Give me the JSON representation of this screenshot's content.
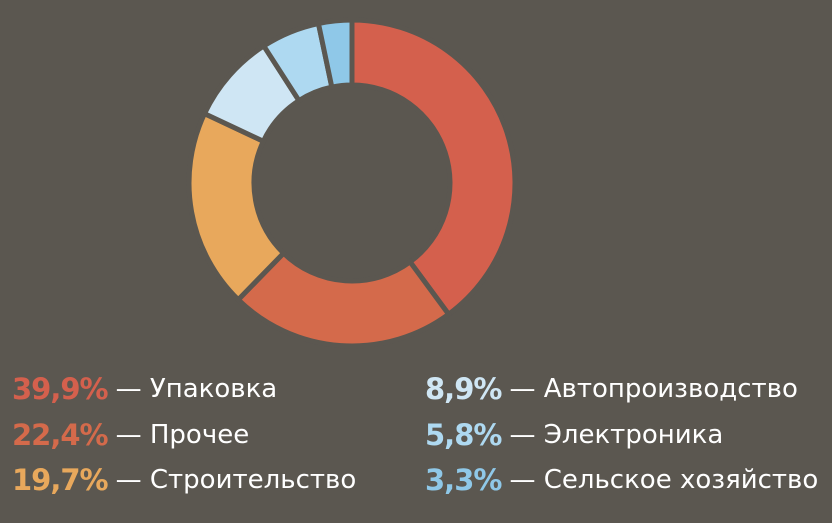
{
  "chart_data": {
    "type": "pie",
    "donut": true,
    "start": "top, clockwise",
    "slices": [
      {
        "label": "Упаковка",
        "value": 39.9,
        "value_text": "39,9%",
        "color": "#d4604d"
      },
      {
        "label": "Прочее",
        "value": 22.4,
        "value_text": "22,4%",
        "color": "#d46a4b"
      },
      {
        "label": "Строительство",
        "value": 19.7,
        "value_text": "19,7%",
        "color": "#e8a85c"
      },
      {
        "label": "Автопроизводство",
        "value": 8.9,
        "value_text": "8,9%",
        "color": "#cfe6f4"
      },
      {
        "label": "Электроника",
        "value": 5.8,
        "value_text": "5,8%",
        "color": "#aed9f1"
      },
      {
        "label": "Сельское хозяйство",
        "value": 3.3,
        "value_text": "3,3%",
        "color": "#8fc8e8"
      }
    ],
    "separator": "—",
    "background": "#5b5750"
  }
}
